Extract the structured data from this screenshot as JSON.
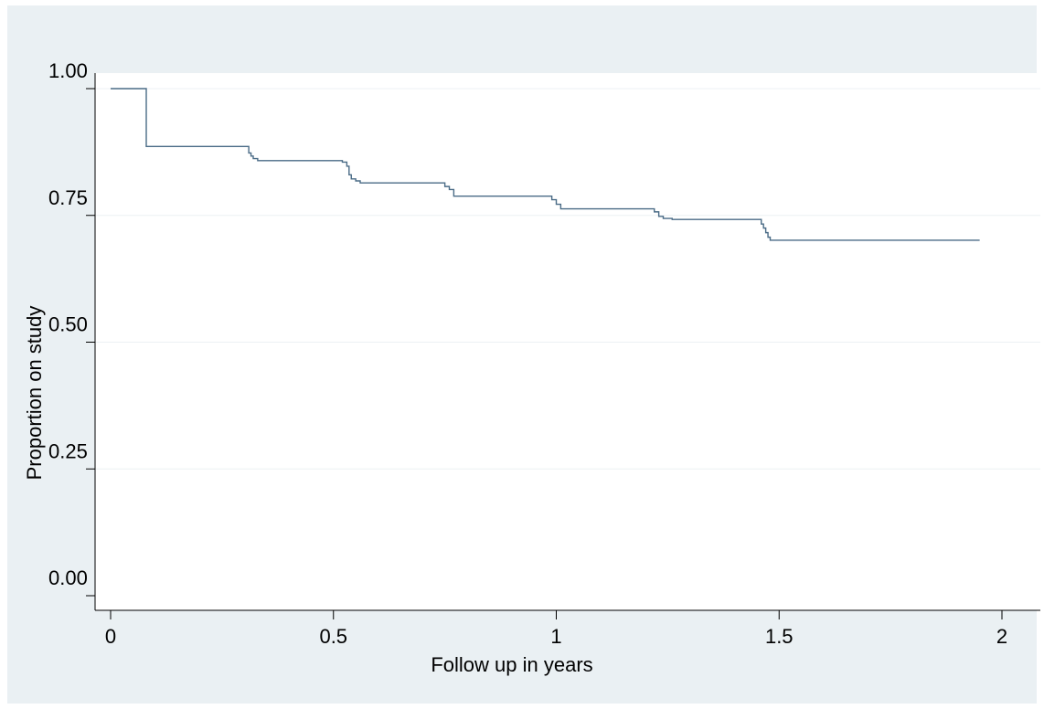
{
  "chart_data": {
    "type": "line",
    "title": "",
    "xlabel": "Follow up in years",
    "ylabel": "Proportion on study",
    "xlim": [
      0,
      2
    ],
    "ylim": [
      0,
      1
    ],
    "x_ticks": [
      "0",
      "0.5",
      "1",
      "1.5",
      "2"
    ],
    "x_tick_values": [
      0,
      0.5,
      1,
      1.5,
      2
    ],
    "y_ticks": [
      "0.00",
      "0.25",
      "0.50",
      "0.75",
      "1.00"
    ],
    "y_tick_values": [
      0,
      0.25,
      0.5,
      0.75,
      1
    ],
    "grid": true,
    "legend": "none",
    "step": "post",
    "series": [
      {
        "x": [
          0,
          0.08,
          0.31,
          0.315,
          0.32,
          0.33,
          0.52,
          0.53,
          0.535,
          0.54,
          0.55,
          0.56,
          0.75,
          0.76,
          0.77,
          0.99,
          1.0,
          1.01,
          1.22,
          1.23,
          1.24,
          1.26,
          1.46,
          1.465,
          1.47,
          1.475,
          1.48,
          1.95
        ],
        "y": [
          1.0,
          0.886,
          0.873,
          0.867,
          0.862,
          0.858,
          0.855,
          0.847,
          0.83,
          0.822,
          0.818,
          0.814,
          0.807,
          0.801,
          0.788,
          0.781,
          0.772,
          0.763,
          0.757,
          0.748,
          0.744,
          0.742,
          0.733,
          0.725,
          0.716,
          0.707,
          0.701,
          0.701
        ]
      }
    ],
    "colors": {
      "line": "#4a6b86",
      "figure_background": "#eaf0f3",
      "plot_background": "#ffffff",
      "grid": "#ecf1f4"
    }
  }
}
